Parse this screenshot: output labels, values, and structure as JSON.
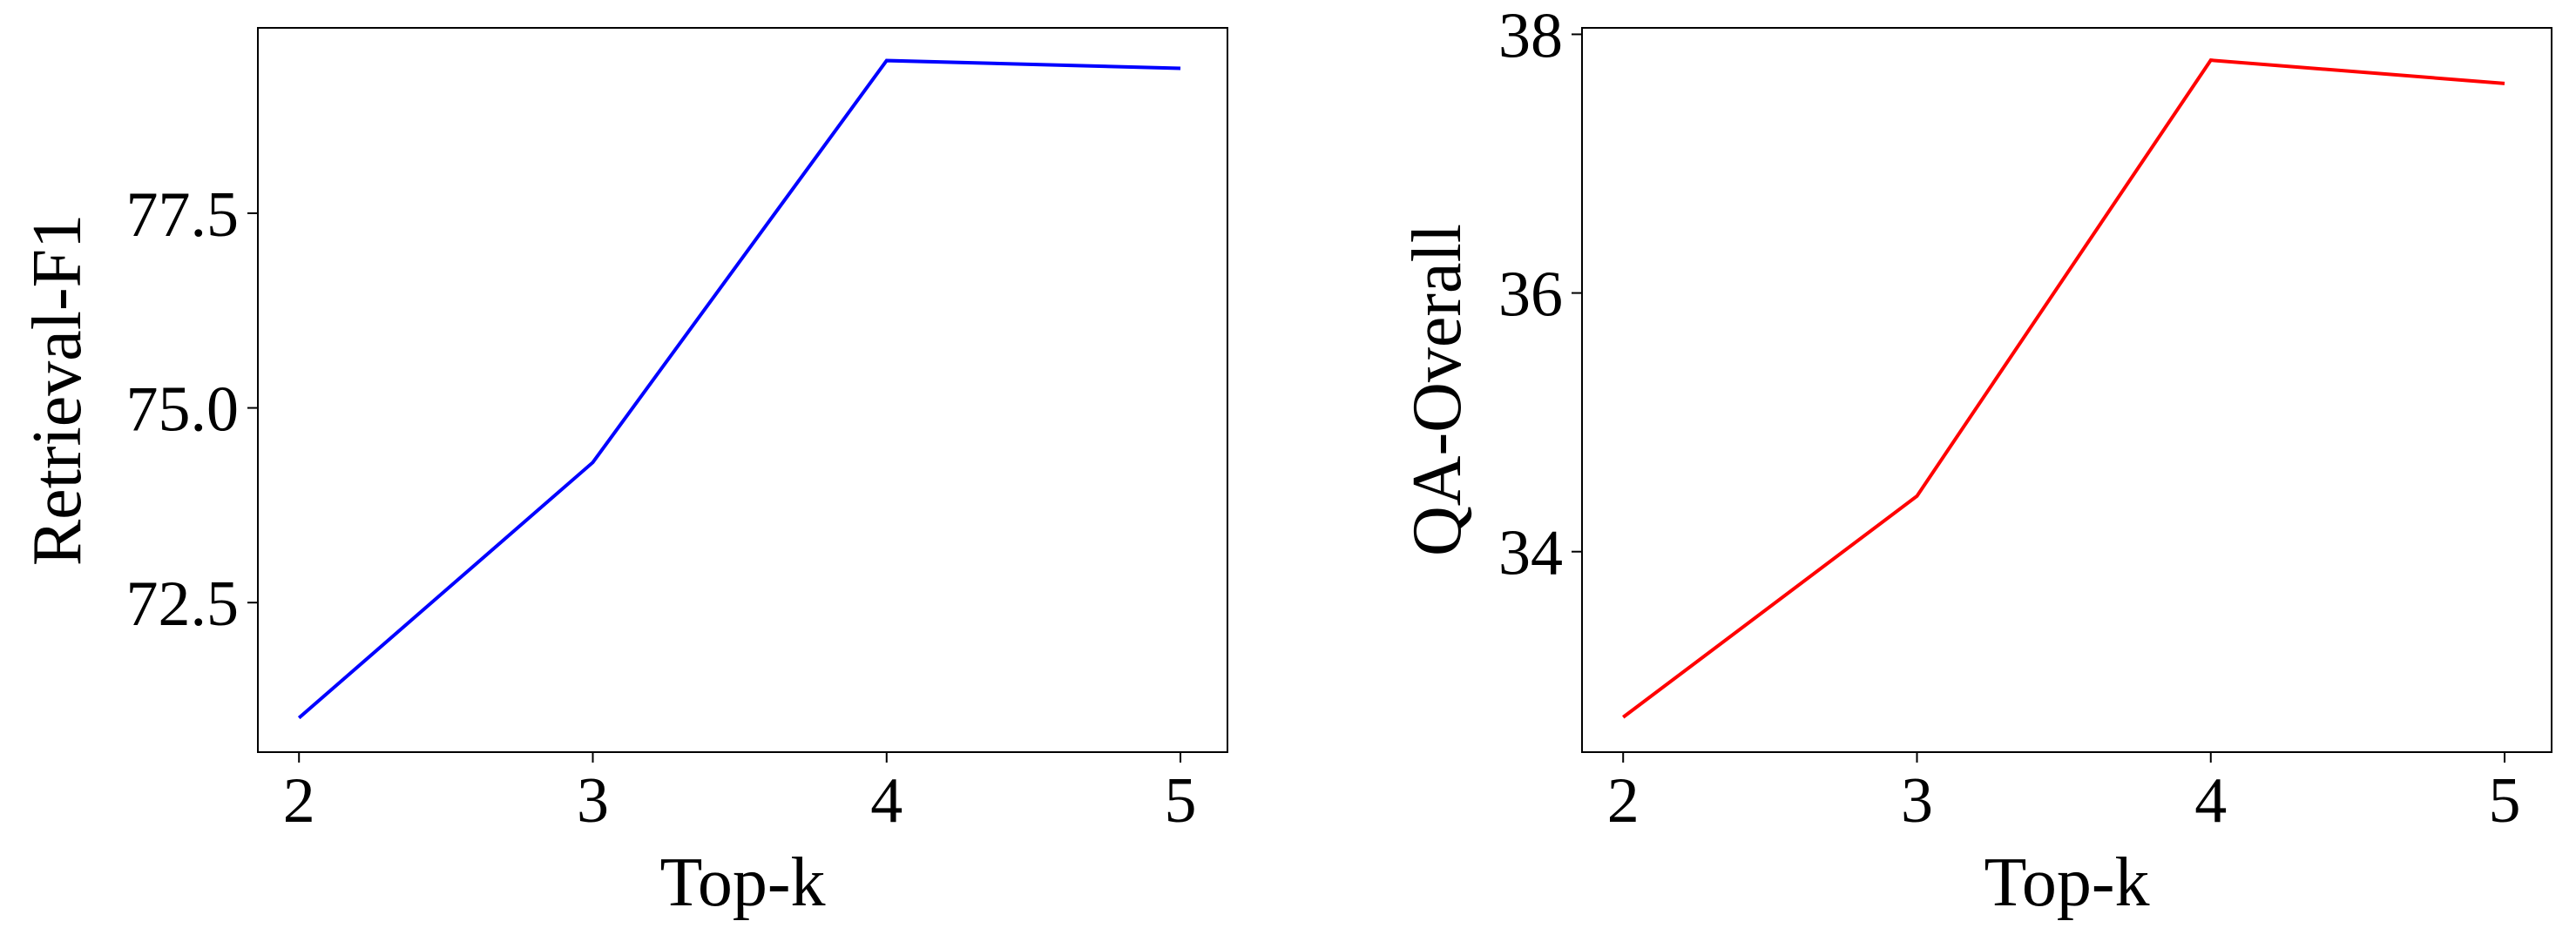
{
  "chart_data": [
    {
      "type": "line",
      "xlabel": "Top-k",
      "ylabel": "Retrieval-F1",
      "x": [
        2,
        3,
        4,
        5
      ],
      "values": [
        71.02,
        74.3,
        79.46,
        79.36
      ],
      "color": "#0000ff",
      "xlim": [
        1.86,
        5.16
      ],
      "xticks": [
        2,
        3,
        4,
        5
      ],
      "ylim": [
        70.58,
        79.88
      ],
      "yticks": [
        72.5,
        {
          "value": 75,
          "label": "75.0"
        },
        77.5
      ],
      "grid": false
    },
    {
      "type": "line",
      "xlabel": "Top-k",
      "ylabel": "QA-Overall",
      "x": [
        2,
        3,
        4,
        5
      ],
      "values": [
        32.72,
        34.43,
        37.8,
        37.62
      ],
      "color": "#ff0000",
      "xlim": [
        1.86,
        5.16
      ],
      "xticks": [
        2,
        3,
        4,
        5
      ],
      "ylim": [
        32.45,
        38.05
      ],
      "yticks": [
        34,
        36,
        38
      ],
      "grid": false
    }
  ]
}
